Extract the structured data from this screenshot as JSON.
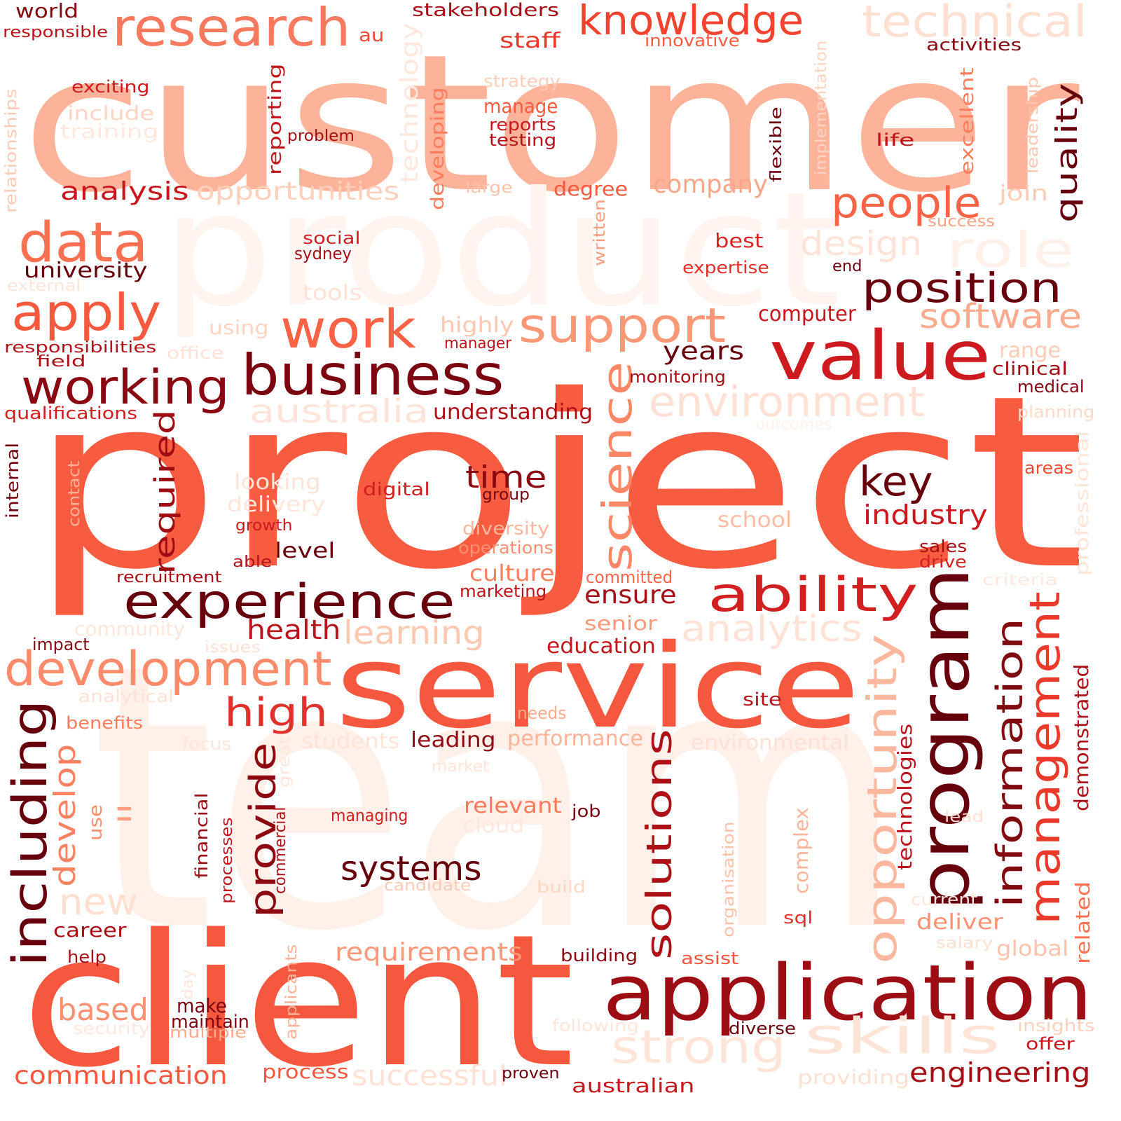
{
  "words": [
    {
      "text": "customer",
      "color": "#fcb399"
    },
    {
      "text": "project",
      "color": "#f75c41"
    },
    {
      "text": "team",
      "color": "#fff1ea"
    },
    {
      "text": "product",
      "color": "#fff4ef"
    },
    {
      "text": "client",
      "color": "#f5573f"
    },
    {
      "text": "service",
      "color": "#f5573f"
    },
    {
      "text": "application",
      "color": "#9c0d14"
    },
    {
      "text": "research",
      "color": "#f9795e"
    },
    {
      "text": "knowledge",
      "color": "#f3432f"
    },
    {
      "text": "technical",
      "color": "#fee0d2"
    },
    {
      "text": "world",
      "color": "#800c12"
    },
    {
      "text": "responsible",
      "color": "#b8141c"
    },
    {
      "text": "au",
      "color": "#f24a34"
    },
    {
      "text": "stakeholders",
      "color": "#a50f15"
    },
    {
      "text": "staff",
      "color": "#e8392c"
    },
    {
      "text": "innovative",
      "color": "#f75c41"
    },
    {
      "text": "activities",
      "color": "#860c12"
    },
    {
      "text": "technology",
      "color": "#fee7dd"
    },
    {
      "text": "exciting",
      "color": "#ce1a1e"
    },
    {
      "text": "include",
      "color": "#fdd4c2"
    },
    {
      "text": "training",
      "color": "#fee8dd"
    },
    {
      "text": "strategy",
      "color": "#fdcdb9"
    },
    {
      "text": "manage",
      "color": "#f45b40"
    },
    {
      "text": "reports",
      "color": "#cb181d"
    },
    {
      "text": "testing",
      "color": "#b6141b"
    },
    {
      "text": "relationships",
      "color": "#fdcab5"
    },
    {
      "text": "reporting",
      "color": "#c1161c"
    },
    {
      "text": "problem",
      "color": "#a30f15"
    },
    {
      "text": "developing",
      "color": "#fb7c5c"
    },
    {
      "text": "implementation",
      "color": "#fdd3c1"
    },
    {
      "text": "excellent",
      "color": "#fb7d5d"
    },
    {
      "text": "leadership",
      "color": "#fdc6af"
    },
    {
      "text": "quality",
      "color": "#67000d"
    },
    {
      "text": "flexible",
      "color": "#6b010e"
    },
    {
      "text": "life",
      "color": "#bb141b"
    },
    {
      "text": "analysis",
      "color": "#c8171c"
    },
    {
      "text": "opportunities",
      "color": "#fdd0bc"
    },
    {
      "text": "large",
      "color": "#fcc2aa"
    },
    {
      "text": "degree",
      "color": "#f6583e"
    },
    {
      "text": "company",
      "color": "#fca689"
    },
    {
      "text": "people",
      "color": "#f96346"
    },
    {
      "text": "join",
      "color": "#fdcbb6"
    },
    {
      "text": "success",
      "color": "#fca386"
    },
    {
      "text": "data",
      "color": "#fa7051"
    },
    {
      "text": "written",
      "color": "#fc9f81"
    },
    {
      "text": "design",
      "color": "#fee4d8"
    },
    {
      "text": "role",
      "color": "#fff1ea"
    },
    {
      "text": "social",
      "color": "#d11e1f"
    },
    {
      "text": "sydney",
      "color": "#a30f15"
    },
    {
      "text": "best",
      "color": "#d82422"
    },
    {
      "text": "expertise",
      "color": "#e0312b"
    },
    {
      "text": "end",
      "color": "#67000d"
    },
    {
      "text": "university",
      "color": "#67000d"
    },
    {
      "text": "external",
      "color": "#fee4d8"
    },
    {
      "text": "apply",
      "color": "#f7593f"
    },
    {
      "text": "tools",
      "color": "#fee1d4"
    },
    {
      "text": "position",
      "color": "#67000d"
    },
    {
      "text": "work",
      "color": "#f96245"
    },
    {
      "text": "support",
      "color": "#fc9777"
    },
    {
      "text": "value",
      "color": "#cd1a1e"
    },
    {
      "text": "computer",
      "color": "#c4161c"
    },
    {
      "text": "software",
      "color": "#fcab8f"
    },
    {
      "text": "using",
      "color": "#fdd3c1"
    },
    {
      "text": "highly",
      "color": "#fcc6af"
    },
    {
      "text": "manager",
      "color": "#bd151b"
    },
    {
      "text": "office",
      "color": "#fee2d5"
    },
    {
      "text": "responsibilities",
      "color": "#b4131b"
    },
    {
      "text": "field",
      "color": "#ac1117"
    },
    {
      "text": "years",
      "color": "#67000d"
    },
    {
      "text": "range",
      "color": "#fdcab5"
    },
    {
      "text": "clinical",
      "color": "#a60f15"
    },
    {
      "text": "business",
      "color": "#7a0510"
    },
    {
      "text": "working",
      "color": "#8a0812"
    },
    {
      "text": "science",
      "color": "#fc8767"
    },
    {
      "text": "monitoring",
      "color": "#a30f15"
    },
    {
      "text": "medical",
      "color": "#840711"
    },
    {
      "text": "environment",
      "color": "#fee1d4"
    },
    {
      "text": "australia",
      "color": "#fee4d8"
    },
    {
      "text": "understanding",
      "color": "#ab1016"
    },
    {
      "text": "planning",
      "color": "#fed9c9"
    },
    {
      "text": "outcomes",
      "color": "#fff2eb"
    },
    {
      "text": "qualifications",
      "color": "#d11e1f"
    },
    {
      "text": "required",
      "color": "#9e0d14"
    },
    {
      "text": "internal",
      "color": "#71020e"
    },
    {
      "text": "contact",
      "color": "#fcb296"
    },
    {
      "text": "looking",
      "color": "#fee3d7"
    },
    {
      "text": "digital",
      "color": "#d21f20"
    },
    {
      "text": "time",
      "color": "#8d0912"
    },
    {
      "text": "group",
      "color": "#720310"
    },
    {
      "text": "key",
      "color": "#67000d"
    },
    {
      "text": "areas",
      "color": "#f34a34"
    },
    {
      "text": "professional",
      "color": "#fee5d8"
    },
    {
      "text": "delivery",
      "color": "#fee6da"
    },
    {
      "text": "growth",
      "color": "#cc191e"
    },
    {
      "text": "diversity",
      "color": "#fcb69b"
    },
    {
      "text": "industry",
      "color": "#cb181d"
    },
    {
      "text": "school",
      "color": "#fcbca3"
    },
    {
      "text": "operations",
      "color": "#fc9070"
    },
    {
      "text": "sales",
      "color": "#a30f15"
    },
    {
      "text": "drive",
      "color": "#d32020"
    },
    {
      "text": "level",
      "color": "#67000d"
    },
    {
      "text": "able",
      "color": "#b5131b"
    },
    {
      "text": "program",
      "color": "#67000d"
    },
    {
      "text": "culture",
      "color": "#fb8060"
    },
    {
      "text": "recruitment",
      "color": "#a40f15"
    },
    {
      "text": "committed",
      "color": "#f96549"
    },
    {
      "text": "marketing",
      "color": "#bb141b"
    },
    {
      "text": "experience",
      "color": "#67000d"
    },
    {
      "text": "ability",
      "color": "#d21f20"
    },
    {
      "text": "ensure",
      "color": "#a50f15"
    },
    {
      "text": "criteria",
      "color": "#fee8de"
    },
    {
      "text": "senior",
      "color": "#fc9879"
    },
    {
      "text": "analytics",
      "color": "#fee2d5"
    },
    {
      "text": "community",
      "color": "#fee6da"
    },
    {
      "text": "health",
      "color": "#b8141c"
    },
    {
      "text": "learning",
      "color": "#fdc8b0"
    },
    {
      "text": "impact",
      "color": "#800c12"
    },
    {
      "text": "issues",
      "color": "#fee1d4"
    },
    {
      "text": "education",
      "color": "#c3161b"
    },
    {
      "text": "information",
      "color": "#800c12"
    },
    {
      "text": "management",
      "color": "#ea3a2c"
    },
    {
      "text": "opportunity",
      "color": "#fcb89e"
    },
    {
      "text": "development",
      "color": "#fc8b6b"
    },
    {
      "text": "analytical",
      "color": "#fee1d4"
    },
    {
      "text": "site",
      "color": "#b61419"
    },
    {
      "text": "demonstrated",
      "color": "#ad1117"
    },
    {
      "text": "including",
      "color": "#67000d"
    },
    {
      "text": "benefits",
      "color": "#fb7d5d"
    },
    {
      "text": "high",
      "color": "#e0312b"
    },
    {
      "text": "needs",
      "color": "#fcaa8d"
    },
    {
      "text": "focus",
      "color": "#fee5d9"
    },
    {
      "text": "students",
      "color": "#fee3d7"
    },
    {
      "text": "leading",
      "color": "#8e0912"
    },
    {
      "text": "performance",
      "color": "#fcb398"
    },
    {
      "text": "environmental",
      "color": "#fee1d4"
    },
    {
      "text": "technologies",
      "color": "#b8131c"
    },
    {
      "text": "develop",
      "color": "#fc8161"
    },
    {
      "text": "provide",
      "color": "#8d0912"
    },
    {
      "text": "great",
      "color": "#fee6da"
    },
    {
      "text": "market",
      "color": "#fee3d7"
    },
    {
      "text": "solutions",
      "color": "#ad1117"
    },
    {
      "text": "use",
      "color": "#fc8d6d"
    },
    {
      "text": "ll",
      "color": "#fc9d7f"
    },
    {
      "text": "financial",
      "color": "#9c0d14"
    },
    {
      "text": "relevant",
      "color": "#fb7959"
    },
    {
      "text": "job",
      "color": "#7c0510"
    },
    {
      "text": "managing",
      "color": "#d21f20"
    },
    {
      "text": "cloud",
      "color": "#fee8de"
    },
    {
      "text": "lead",
      "color": "#fee0d2"
    },
    {
      "text": "processes",
      "color": "#bf151b"
    },
    {
      "text": "commercial",
      "color": "#ab1016"
    },
    {
      "text": "complex",
      "color": "#fcb59a"
    },
    {
      "text": "organisation",
      "color": "#fcc1a8"
    },
    {
      "text": "related",
      "color": "#fb7252"
    },
    {
      "text": "new",
      "color": "#fedfd0"
    },
    {
      "text": "systems",
      "color": "#67000d"
    },
    {
      "text": "candidate",
      "color": "#fdcab5"
    },
    {
      "text": "build",
      "color": "#fdd7c6"
    },
    {
      "text": "current",
      "color": "#fee6da"
    },
    {
      "text": "career",
      "color": "#ab1016"
    },
    {
      "text": "deliver",
      "color": "#fc9272"
    },
    {
      "text": "sql",
      "color": "#e0312b"
    },
    {
      "text": "salary",
      "color": "#fedfd0"
    },
    {
      "text": "help",
      "color": "#a50f15"
    },
    {
      "text": "requirements",
      "color": "#fc9777"
    },
    {
      "text": "building",
      "color": "#8c0912"
    },
    {
      "text": "assist",
      "color": "#f4543c"
    },
    {
      "text": "global",
      "color": "#fcc2aa"
    },
    {
      "text": "applicants",
      "color": "#fcb296"
    },
    {
      "text": "day",
      "color": "#fee6da"
    },
    {
      "text": "based",
      "color": "#fc9070"
    },
    {
      "text": "make",
      "color": "#7a0510"
    },
    {
      "text": "maintain",
      "color": "#7c0510"
    },
    {
      "text": "security",
      "color": "#fee8de"
    },
    {
      "text": "multiple",
      "color": "#fcaa8d"
    },
    {
      "text": "following",
      "color": "#fee6da"
    },
    {
      "text": "diverse",
      "color": "#6b010e"
    },
    {
      "text": "insights",
      "color": "#fdd0bc"
    },
    {
      "text": "offer",
      "color": "#c8171c"
    },
    {
      "text": "strong",
      "color": "#fee5d8"
    },
    {
      "text": "skills",
      "color": "#fee3d7"
    },
    {
      "text": "communication",
      "color": "#f6583e"
    },
    {
      "text": "process",
      "color": "#f6553c"
    },
    {
      "text": "successful",
      "color": "#fee1d4"
    },
    {
      "text": "proven",
      "color": "#6b010e"
    },
    {
      "text": "australian",
      "color": "#c8171c"
    },
    {
      "text": "providing",
      "color": "#fee0d2"
    },
    {
      "text": "engineering",
      "color": "#a30f15"
    }
  ]
}
